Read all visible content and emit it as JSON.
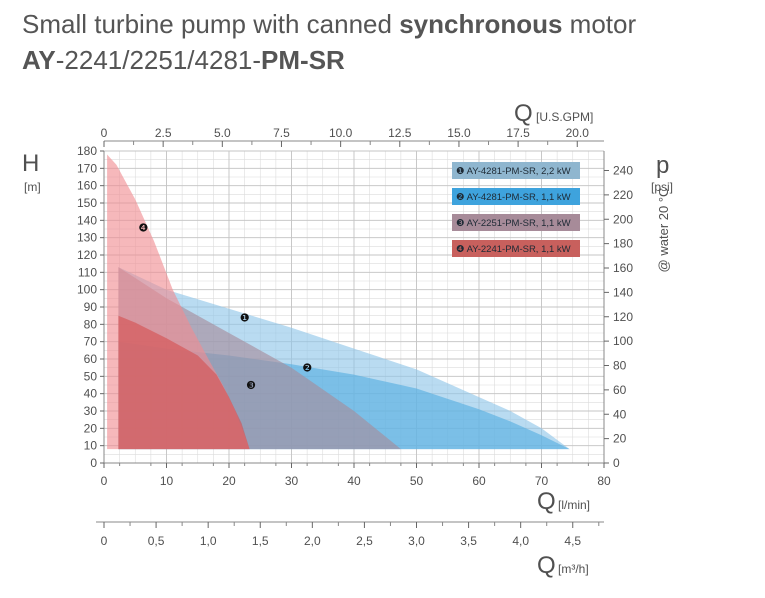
{
  "title": {
    "line1_pre": "Small turbine pump with canned ",
    "line1_bold": "synchronous",
    "line1_post": " motor",
    "line2_a": "AY",
    "line2_b": "-2241/2251/4281-",
    "line2_c": "PM-SR"
  },
  "chart_data": {
    "type": "area",
    "grid": true,
    "legend_position": "top-right",
    "axes": {
      "left": {
        "name": "H",
        "unit": "[m]",
        "range": [
          0,
          180
        ],
        "ticks": [
          0,
          10,
          20,
          30,
          40,
          50,
          60,
          70,
          80,
          90,
          100,
          110,
          120,
          130,
          140,
          150,
          160,
          170,
          180
        ]
      },
      "right": {
        "name": "p",
        "unit": "[psi]",
        "range": [
          0,
          256
        ],
        "note": "@ water 20 °C",
        "ticks": [
          0,
          20,
          40,
          60,
          80,
          100,
          120,
          140,
          160,
          180,
          200,
          220,
          240
        ]
      },
      "bottom": {
        "name": "Q",
        "unit": "[l/min]",
        "range": [
          0,
          80
        ],
        "ticks": [
          0,
          10,
          20,
          30,
          40,
          50,
          60,
          70,
          80
        ]
      },
      "top": {
        "name": "Q",
        "unit": "[U.S.GPM]",
        "range": [
          0,
          21.13
        ],
        "ticks": [
          "0",
          "2.5",
          "5.0",
          "7.5",
          "10.0",
          "12.5",
          "15.0",
          "17.5",
          "20.0"
        ],
        "tick_values": [
          0,
          2.5,
          5,
          7.5,
          10,
          12.5,
          15,
          17.5,
          20
        ]
      },
      "extra_bottom": {
        "name": "Q",
        "unit": "[m³/h]",
        "range": [
          0,
          4.8
        ],
        "ticks": [
          "0",
          "0,5",
          "1,0",
          "1,5",
          "2,0",
          "2,5",
          "3,0",
          "3,5",
          "4,0",
          "4,5"
        ],
        "tick_values": [
          0,
          0.5,
          1,
          1.5,
          2,
          2.5,
          3,
          3.5,
          4,
          4.5
        ]
      }
    },
    "series": [
      {
        "name": "AY-4281-PM-SR, 2,2 kW",
        "marker": "❶",
        "color": "#8ec5e8",
        "label_at": [
          22.5,
          84
        ],
        "points": [
          [
            2.3,
            113
          ],
          [
            10,
            100
          ],
          [
            20,
            89
          ],
          [
            30,
            78
          ],
          [
            40,
            66
          ],
          [
            50,
            54
          ],
          [
            60,
            38
          ],
          [
            65,
            30
          ],
          [
            70,
            20
          ],
          [
            74.5,
            8
          ]
        ]
      },
      {
        "name": "AY-4281-PM-SR, 1,1 kW",
        "marker": "❷",
        "color": "#55aee0",
        "label_at": [
          32.5,
          55
        ],
        "points": [
          [
            2.3,
            70
          ],
          [
            10,
            66
          ],
          [
            20,
            62
          ],
          [
            30,
            57
          ],
          [
            40,
            51
          ],
          [
            50,
            43
          ],
          [
            60,
            31
          ],
          [
            65,
            24
          ],
          [
            70,
            16
          ],
          [
            74.5,
            8
          ]
        ]
      },
      {
        "name": "AY-2251-PM-SR, 1,1 kW",
        "marker": "❸",
        "color": "#a78b99",
        "label_at": [
          23.5,
          45
        ],
        "points": [
          [
            2.3,
            113
          ],
          [
            10,
            95
          ],
          [
            20,
            75
          ],
          [
            30,
            55
          ],
          [
            40,
            30
          ],
          [
            47.5,
            8
          ]
        ]
      },
      {
        "name": "AY-2241-PM-SR, 1,1 kW",
        "marker": "❹",
        "color": "#f08c92",
        "label_at": [
          6.3,
          136
        ],
        "points": [
          [
            0.5,
            178
          ],
          [
            2,
            172
          ],
          [
            5,
            152
          ],
          [
            8,
            128
          ],
          [
            11,
            100
          ],
          [
            14,
            78
          ],
          [
            17,
            58
          ],
          [
            19,
            45
          ],
          [
            21,
            30
          ],
          [
            22.5,
            16
          ],
          [
            23.3,
            8
          ]
        ]
      },
      {
        "name": "",
        "marker": "",
        "color": "#d55050",
        "legend": false,
        "points": [
          [
            2.3,
            85
          ],
          [
            5,
            81
          ],
          [
            10,
            72
          ],
          [
            15,
            62
          ],
          [
            18,
            51
          ],
          [
            20,
            38
          ],
          [
            22,
            23
          ],
          [
            23.3,
            8
          ]
        ]
      }
    ]
  }
}
